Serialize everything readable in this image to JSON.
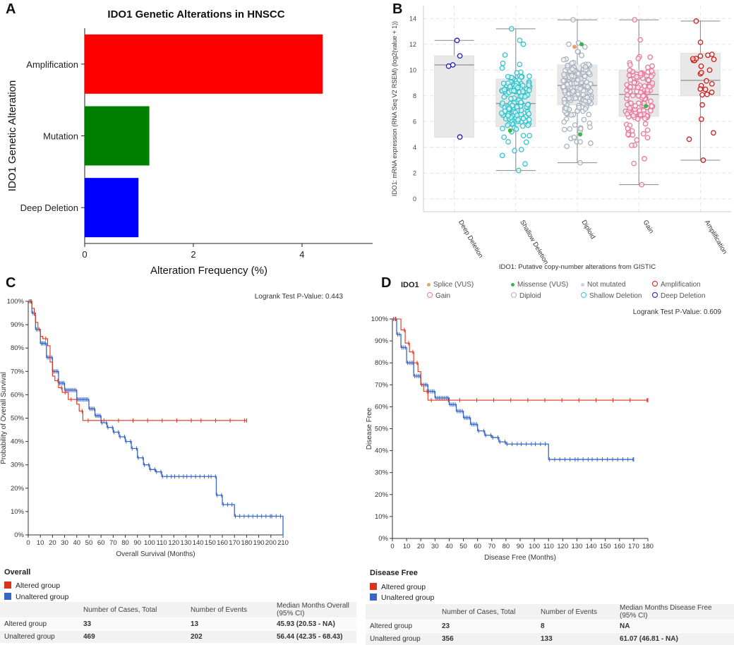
{
  "panels": {
    "a": "A",
    "b": "B",
    "c": "C",
    "d": "D"
  },
  "chart_data": [
    {
      "type": "bar",
      "orientation": "horizontal",
      "title": "IDO1 Genetic Alterations in HNSCC",
      "xlabel": "Alteration Frequency (%)",
      "ylabel": "IDO1 Genetic Alteration",
      "categories": [
        "Amplification",
        "Mutation",
        "Deep Deletion"
      ],
      "values": [
        4.38,
        1.19,
        0.99
      ],
      "colors": [
        "#ff0000",
        "#008000",
        "#0000ff"
      ],
      "xlim": [
        0,
        5.3
      ],
      "xticks": [
        0,
        2,
        4
      ],
      "xtick_labels": [
        "0",
        "2",
        "4"
      ]
    },
    {
      "type": "scatter",
      "subtype": "box-strip",
      "ylabel": "IDO1: mRNA expression (RNA Seq V2 RSEM) (log2(value + 1))",
      "xlabel": "IDO1: Putative copy-number alterations from GISTIC",
      "categories": [
        "Deep Deletion",
        "Shallow Deletion",
        "Diploid",
        "Gain",
        "Amplification"
      ],
      "colors": [
        "#1a1ab3",
        "#33c4cc",
        "#a9b4be",
        "#e87a9a",
        "#d21a1a"
      ],
      "ylim": [
        -1,
        15
      ],
      "yticks": [
        0,
        2,
        4,
        6,
        8,
        10,
        12,
        14
      ],
      "boxes": [
        {
          "min": 4.8,
          "q1": 4.8,
          "median": 10.4,
          "q3": 11.1,
          "max": 12.3,
          "n": 5
        },
        {
          "min": 2.2,
          "q1": 5.6,
          "median": 7.4,
          "q3": 9.3,
          "max": 13.2,
          "n": 160
        },
        {
          "min": 2.8,
          "q1": 7.3,
          "median": 8.8,
          "q3": 10.4,
          "max": 13.9,
          "n": 180
        },
        {
          "min": 1.1,
          "q1": 6.4,
          "median": 8.1,
          "q3": 10.0,
          "max": 13.9,
          "n": 130
        },
        {
          "min": 3.0,
          "q1": 8.0,
          "median": 9.2,
          "q3": 11.3,
          "max": 13.8,
          "n": 25
        }
      ],
      "deep_deletion_points": [
        12.3,
        11.1,
        10.4,
        10.3,
        4.8
      ]
    },
    {
      "type": "line",
      "subtype": "kaplan-meier",
      "xlabel": "Overall Survival (Months)",
      "ylabel": "Probability of Overall Survival",
      "annotation": "Logrank Test P-Value: 0.443",
      "xlim": [
        0,
        210
      ],
      "ylim": [
        0,
        100
      ],
      "xticks": [
        0,
        10,
        20,
        30,
        40,
        50,
        60,
        70,
        80,
        90,
        100,
        110,
        120,
        130,
        140,
        150,
        160,
        170,
        180,
        190,
        200,
        210
      ],
      "yticks": [
        0,
        10,
        20,
        30,
        40,
        50,
        60,
        70,
        80,
        90,
        100
      ],
      "series": [
        {
          "name": "Altered group",
          "color": "#d9341c",
          "x": [
            0,
            3,
            5,
            6,
            8,
            10,
            12,
            16,
            18,
            20,
            22,
            25,
            28,
            33,
            40,
            42,
            45,
            47,
            60,
            140,
            180
          ],
          "y": [
            100,
            97,
            94,
            91,
            88,
            85,
            84,
            81,
            74,
            68,
            66,
            63,
            61,
            58,
            56,
            53,
            49,
            49,
            49,
            49,
            49
          ]
        },
        {
          "name": "Unaltered group",
          "color": "#3a65c8",
          "x": [
            0,
            3,
            6,
            10,
            15,
            20,
            25,
            30,
            40,
            50,
            55,
            60,
            65,
            70,
            75,
            80,
            85,
            90,
            95,
            100,
            105,
            110,
            120,
            130,
            150,
            155,
            160,
            170,
            200,
            210
          ],
          "y": [
            100,
            95,
            88,
            82,
            76,
            70,
            65,
            62,
            58,
            54,
            51,
            48,
            46,
            44,
            42,
            40,
            37,
            33,
            30,
            28,
            27,
            25,
            25,
            25,
            25,
            17,
            13,
            8,
            8,
            0
          ]
        }
      ]
    },
    {
      "type": "line",
      "subtype": "kaplan-meier",
      "xlabel": "Disease Free (Months)",
      "ylabel": "Disease Free",
      "annotation": "Logrank Test P-Value: 0.609",
      "xlim": [
        0,
        180
      ],
      "ylim": [
        0,
        100
      ],
      "xticks": [
        0,
        10,
        20,
        30,
        40,
        50,
        60,
        70,
        80,
        90,
        100,
        110,
        120,
        130,
        140,
        150,
        160,
        170,
        180
      ],
      "yticks": [
        0,
        10,
        20,
        30,
        40,
        50,
        60,
        70,
        80,
        90,
        100
      ],
      "series": [
        {
          "name": "Altered group",
          "color": "#d9341c",
          "x": [
            0,
            6,
            9,
            12,
            15,
            18,
            20,
            22,
            25,
            45,
            180
          ],
          "y": [
            100,
            95,
            89,
            85,
            80,
            76,
            70,
            67,
            63,
            63,
            63
          ]
        },
        {
          "name": "Unaltered group",
          "color": "#3a65c8",
          "x": [
            0,
            3,
            6,
            10,
            15,
            20,
            25,
            30,
            40,
            45,
            50,
            55,
            60,
            65,
            70,
            75,
            80,
            90,
            100,
            107,
            110,
            130,
            140,
            170
          ],
          "y": [
            100,
            93,
            87,
            80,
            74,
            70,
            67,
            64,
            61,
            58,
            55,
            52,
            49,
            47,
            46,
            44,
            43,
            43,
            43,
            43,
            36,
            36,
            36,
            36
          ]
        }
      ]
    }
  ],
  "legend_d": {
    "title": "IDO1",
    "items": [
      {
        "label": "Splice (VUS)",
        "color": "#e8a070",
        "style": "dot"
      },
      {
        "label": "Missense (VUS)",
        "color": "#3cb44b",
        "style": "dot"
      },
      {
        "label": "Not mutated",
        "color": "#c8d4dc",
        "style": "dot"
      },
      {
        "label": "Amplification",
        "color": "#d21a1a",
        "style": "ring"
      },
      {
        "label": "Gain",
        "color": "#e87a9a",
        "style": "ring"
      },
      {
        "label": "Diploid",
        "color": "#a9b4be",
        "style": "ring"
      },
      {
        "label": "Shallow Deletion",
        "color": "#33c4cc",
        "style": "ring"
      },
      {
        "label": "Deep Deletion",
        "color": "#1a1ab3",
        "style": "ring"
      }
    ]
  },
  "overall": {
    "title": "Overall",
    "legend": [
      {
        "label": "Altered group",
        "color": "#d9341c"
      },
      {
        "label": "Unaltered group",
        "color": "#3a65c8"
      }
    ],
    "headers": [
      "",
      "Number of Cases, Total",
      "Number of Events",
      "Median Months Overall (95% CI)"
    ],
    "rows": [
      [
        "Altered group",
        "33",
        "13",
        "45.93 (20.53 - NA)"
      ],
      [
        "Unaltered group",
        "469",
        "202",
        "56.44 (42.35 - 68.43)"
      ]
    ]
  },
  "disease_free": {
    "title": "Disease Free",
    "legend": [
      {
        "label": "Altered group",
        "color": "#d9341c"
      },
      {
        "label": "Unaltered group",
        "color": "#3a65c8"
      }
    ],
    "headers": [
      "",
      "Number of Cases, Total",
      "Number of Events",
      "Median Months Disease Free (95% CI)"
    ],
    "rows": [
      [
        "Altered group",
        "23",
        "8",
        "NA"
      ],
      [
        "Unaltered group",
        "356",
        "133",
        "61.07 (46.81 - NA)"
      ]
    ]
  }
}
